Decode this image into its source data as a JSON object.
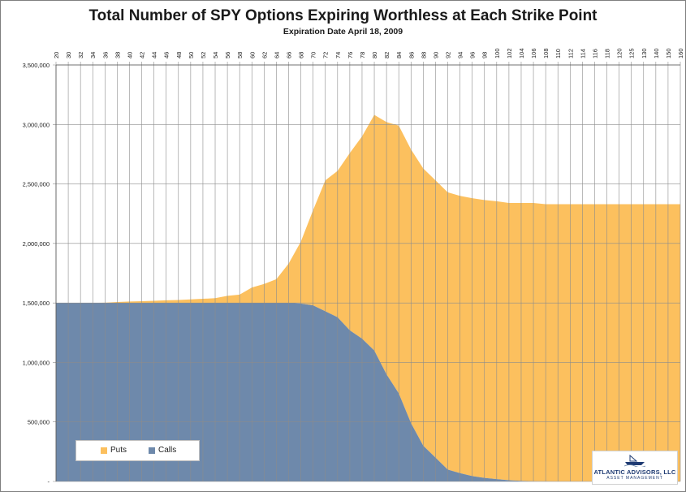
{
  "chart_data": {
    "type": "area",
    "stacked": true,
    "title": "Total Number of SPY Options Expiring Worthless at Each Strike Point",
    "subtitle": "Expiration Date April 18, 2009",
    "xlabel": "",
    "ylabel": "",
    "x_tick_labels": [
      "20",
      "30",
      "32",
      "34",
      "36",
      "38",
      "40",
      "42",
      "44",
      "46",
      "48",
      "50",
      "52",
      "54",
      "56",
      "58",
      "60",
      "62",
      "64",
      "66",
      "68",
      "70",
      "72",
      "74",
      "76",
      "78",
      "80",
      "82",
      "84",
      "86",
      "88",
      "90",
      "92",
      "94",
      "96",
      "98",
      "100",
      "102",
      "104",
      "106",
      "108",
      "110",
      "112",
      "114",
      "116",
      "118",
      "120",
      "125",
      "130",
      "140",
      "150",
      "160"
    ],
    "y_tick_labels": [
      "-",
      "500,000",
      "1,000,000",
      "1,500,000",
      "2,000,000",
      "2,500,000",
      "3,000,000",
      "3,500,000"
    ],
    "ylim": [
      0,
      3500000
    ],
    "x_axis_position": "top",
    "grid": true,
    "legend_position": "bottom-left",
    "series": [
      {
        "name": "Calls",
        "color": "#6e89ab",
        "values": [
          1500000,
          1500000,
          1500000,
          1500000,
          1500000,
          1500000,
          1500000,
          1500000,
          1500000,
          1500000,
          1500000,
          1500000,
          1500000,
          1500000,
          1500000,
          1500000,
          1500000,
          1500000,
          1500000,
          1500000,
          1495000,
          1480000,
          1430000,
          1380000,
          1270000,
          1200000,
          1100000,
          900000,
          740000,
          490000,
          300000,
          200000,
          100000,
          70000,
          45000,
          30000,
          20000,
          10000,
          5000,
          2000,
          1000,
          0,
          0,
          0,
          0,
          0,
          0,
          0,
          0,
          0,
          0,
          0
        ]
      },
      {
        "name": "Puts",
        "color": "#fcc05e",
        "values": [
          0,
          0,
          0,
          0,
          2000,
          8000,
          12000,
          15000,
          18000,
          22000,
          25000,
          30000,
          35000,
          40000,
          60000,
          70000,
          130000,
          160000,
          200000,
          330000,
          520000,
          800000,
          1100000,
          1230000,
          1490000,
          1700000,
          1980000,
          2120000,
          2250000,
          2300000,
          2330000,
          2330000,
          2330000,
          2330000,
          2335000,
          2335000,
          2335000,
          2330000,
          2335000,
          2338000,
          2329000,
          2330000,
          2330000,
          2330000,
          2330000,
          2330000,
          2330000,
          2330000,
          2330000,
          2330000,
          2330000,
          2330000
        ]
      }
    ]
  },
  "legend": {
    "puts": "Puts",
    "calls": "Calls"
  },
  "logo": {
    "name": "ATLANTIC ADVISORS, LLC",
    "sub": "ASSET MANAGEMENT"
  }
}
